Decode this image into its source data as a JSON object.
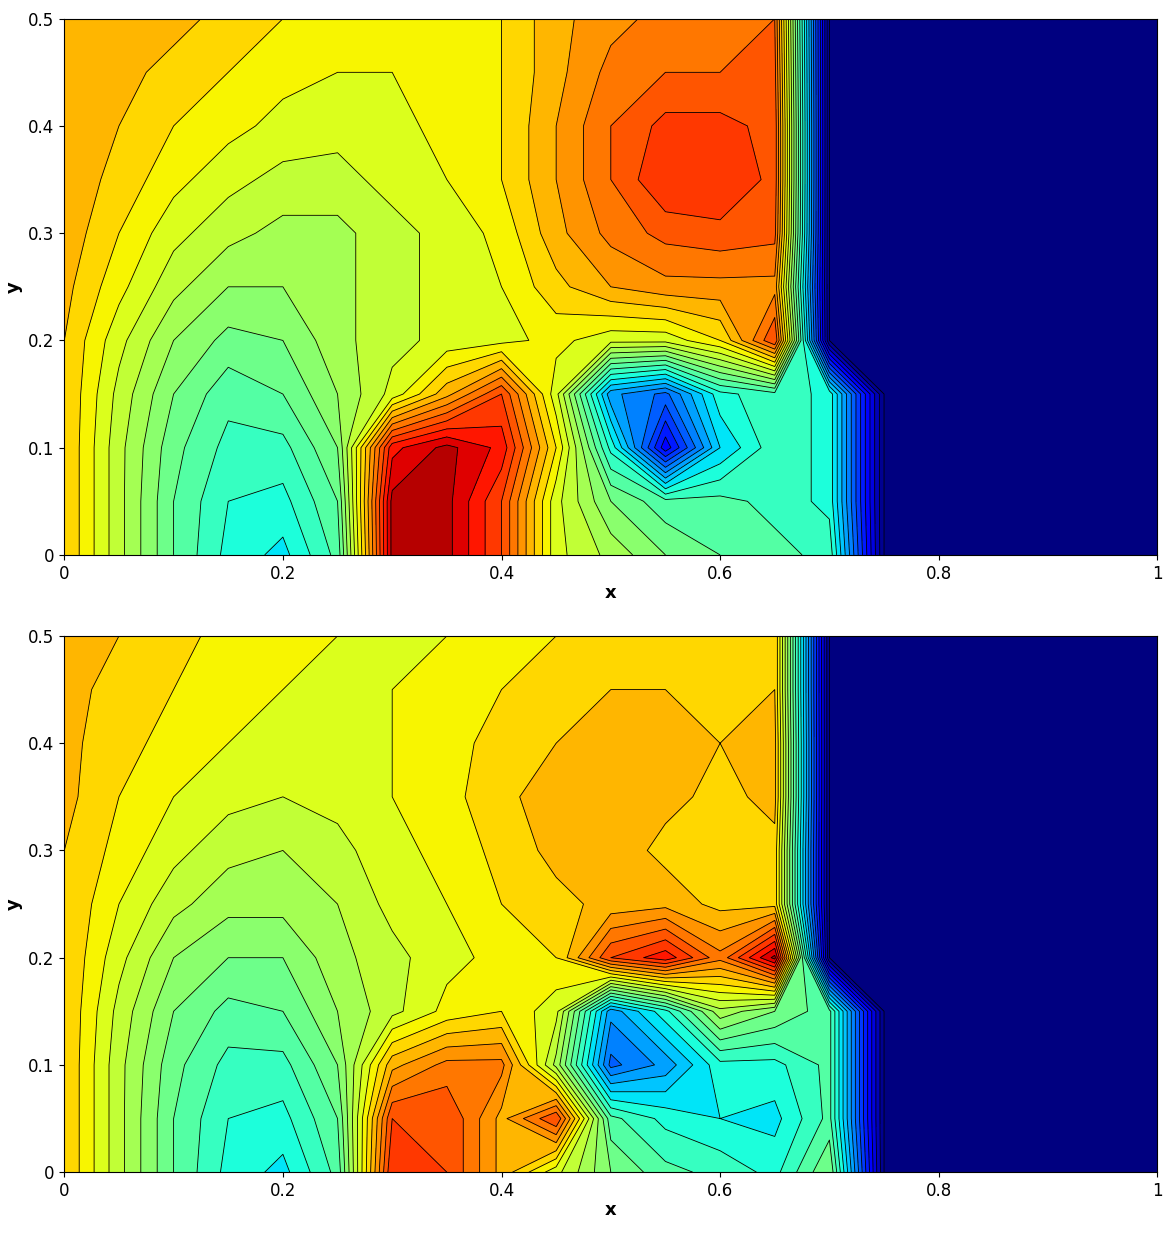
{
  "chart_data": [
    {
      "type": "contour",
      "xlabel": "x",
      "ylabel": "y",
      "xlim": [
        0,
        1
      ],
      "ylim": [
        0,
        0.5
      ],
      "xticks": [
        0,
        0.2,
        0.4,
        0.6,
        0.8,
        1
      ],
      "yticks": [
        0,
        0.1,
        0.2,
        0.3,
        0.4,
        0.5
      ],
      "zlim": [
        1,
        10
      ],
      "x": [
        0,
        0.05,
        0.1,
        0.15,
        0.2,
        0.25,
        0.3,
        0.35,
        0.4,
        0.45,
        0.5,
        0.55,
        0.6,
        0.65,
        0.7,
        0.75,
        0.8,
        0.85,
        0.9,
        0.95,
        1
      ],
      "y": [
        0,
        0.05,
        0.1,
        0.15,
        0.2,
        0.25,
        0.3,
        0.35,
        0.4,
        0.45,
        0.5
      ],
      "z": [
        [
          7.3,
          6.2,
          5.2,
          4.5,
          4.2,
          5,
          9.5,
          9.5,
          8.5,
          6.5,
          6,
          5.5,
          5.2,
          5,
          4.8,
          1,
          1,
          1,
          1,
          1,
          1
        ],
        [
          7.3,
          6.2,
          5.2,
          4.6,
          4.5,
          5.2,
          9.5,
          9.5,
          8.5,
          6.5,
          5.5,
          5,
          5,
          4.8,
          4.5,
          1,
          1,
          1,
          1,
          1,
          1
        ],
        [
          7.3,
          6.2,
          5.3,
          4.8,
          4.8,
          5.5,
          9,
          9.5,
          9,
          7,
          4.5,
          2,
          4,
          4.8,
          4.5,
          1,
          1,
          1,
          1,
          1,
          1
        ],
        [
          7.3,
          6.3,
          5.5,
          5,
          5.2,
          5.8,
          6.5,
          7.5,
          8.5,
          6.5,
          3.5,
          3,
          4.5,
          4.8,
          4.5,
          1,
          1,
          1,
          1,
          1,
          1
        ],
        [
          7.3,
          6.5,
          5.8,
          5.4,
          5.5,
          6,
          6.3,
          6.5,
          6.6,
          6.8,
          6.5,
          6.5,
          7,
          8.5,
          1,
          1,
          1,
          1,
          1,
          1,
          1
        ],
        [
          7.4,
          6.8,
          6.2,
          5.8,
          5.8,
          6,
          6.3,
          6.5,
          6.7,
          7.2,
          7.6,
          7.8,
          7.8,
          7.8,
          1,
          1,
          1,
          1,
          1,
          1,
          1
        ],
        [
          7.5,
          7,
          6.5,
          6.2,
          6,
          6,
          6.3,
          6.5,
          6.8,
          7.5,
          8,
          8.3,
          8.4,
          8.3,
          1,
          1,
          1,
          1,
          1,
          1,
          1
        ],
        [
          7.5,
          7.2,
          6.8,
          6.5,
          6.3,
          6.3,
          6.5,
          6.7,
          7,
          7.6,
          8.2,
          8.8,
          8.8,
          8.4,
          1,
          1,
          1,
          1,
          1,
          1,
          1
        ],
        [
          7.5,
          7.3,
          7,
          6.8,
          6.6,
          6.5,
          6.6,
          6.8,
          7,
          7.6,
          8.2,
          8.6,
          8.6,
          8.4,
          1,
          1,
          1,
          1,
          1,
          1,
          1
        ],
        [
          7.5,
          7.4,
          7.2,
          7,
          6.8,
          6.7,
          6.7,
          6.8,
          7,
          7.5,
          8,
          8.2,
          8.2,
          8.3,
          1,
          1,
          1,
          1,
          1,
          1,
          1
        ],
        [
          7.5,
          7.5,
          7.4,
          7.2,
          7,
          6.8,
          6.8,
          6.8,
          7,
          7.5,
          7.8,
          8,
          8,
          8.2,
          1,
          1,
          1,
          1,
          1,
          1,
          1
        ]
      ]
    },
    {
      "type": "contour",
      "xlabel": "x",
      "ylabel": "y",
      "xlim": [
        0,
        1
      ],
      "ylim": [
        0,
        0.5
      ],
      "xticks": [
        0,
        0.2,
        0.4,
        0.6,
        0.8,
        1
      ],
      "yticks": [
        0,
        0.1,
        0.2,
        0.3,
        0.4,
        0.5
      ],
      "zlim": [
        1,
        10
      ],
      "x": [
        0,
        0.05,
        0.1,
        0.15,
        0.2,
        0.25,
        0.3,
        0.35,
        0.4,
        0.45,
        0.5,
        0.55,
        0.6,
        0.65,
        0.7,
        0.75,
        0.8,
        0.85,
        0.9,
        0.95,
        1
      ],
      "y": [
        0,
        0.05,
        0.1,
        0.15,
        0.2,
        0.25,
        0.3,
        0.35,
        0.4,
        0.45,
        0.5
      ],
      "z": [
        [
          7.3,
          6.2,
          5.2,
          4.5,
          4.2,
          5,
          8.8,
          8.5,
          7.5,
          6.5,
          5.5,
          5,
          4.8,
          4.5,
          5.5,
          1,
          1,
          1,
          1,
          1,
          1
        ],
        [
          7.3,
          6.2,
          5.2,
          4.6,
          4.5,
          5.2,
          8.5,
          8.5,
          7.5,
          8.5,
          5,
          4.5,
          4.3,
          4.2,
          5,
          1,
          1,
          1,
          1,
          1,
          1
        ],
        [
          7.3,
          6.2,
          5.3,
          4.8,
          4.8,
          5.5,
          7.5,
          8,
          8,
          6,
          3,
          3.5,
          4.5,
          4.5,
          5,
          1,
          1,
          1,
          1,
          1,
          1
        ],
        [
          7.3,
          6.3,
          5.5,
          5.1,
          5.2,
          5.8,
          6.3,
          6.8,
          7,
          6.5,
          3.5,
          4.5,
          6,
          5.5,
          5,
          1,
          1,
          1,
          1,
          1,
          1
        ],
        [
          7.3,
          6.5,
          5.8,
          5.5,
          5.5,
          6,
          6.3,
          6.6,
          6.8,
          7,
          8.5,
          9,
          8,
          9.5,
          1,
          1,
          1,
          1,
          1,
          1,
          1
        ],
        [
          7.3,
          6.7,
          6.2,
          5.9,
          5.9,
          6.1,
          6.5,
          6.7,
          7,
          7.2,
          7.4,
          7.5,
          7.2,
          7.2,
          1,
          1,
          1,
          1,
          1,
          1,
          1
        ],
        [
          7.3,
          6.9,
          6.5,
          6.2,
          6.1,
          6.3,
          6.6,
          6.8,
          7.1,
          7.4,
          7.5,
          7.2,
          7,
          7.2,
          1,
          1,
          1,
          1,
          1,
          1,
          1
        ],
        [
          7.4,
          7,
          6.7,
          6.5,
          6.4,
          6.5,
          6.7,
          6.9,
          7.2,
          7.5,
          7.6,
          7.4,
          7.2,
          7.4,
          1,
          1,
          1,
          1,
          1,
          1,
          1
        ],
        [
          7.4,
          7.1,
          6.9,
          6.7,
          6.6,
          6.6,
          6.7,
          6.9,
          7.1,
          7.3,
          7.5,
          7.4,
          7.3,
          7.4,
          1,
          1,
          1,
          1,
          1,
          1,
          1
        ],
        [
          7.4,
          7.2,
          7,
          6.8,
          6.7,
          6.7,
          6.7,
          6.8,
          7,
          7.2,
          7.3,
          7.3,
          7.2,
          7.3,
          1,
          1,
          1,
          1,
          1,
          1,
          1
        ],
        [
          7.4,
          7.3,
          7.1,
          6.9,
          6.8,
          6.7,
          6.7,
          6.7,
          6.8,
          7,
          7.2,
          7.2,
          7.2,
          7.3,
          1,
          1,
          1,
          1,
          1,
          1,
          1
        ]
      ]
    }
  ]
}
